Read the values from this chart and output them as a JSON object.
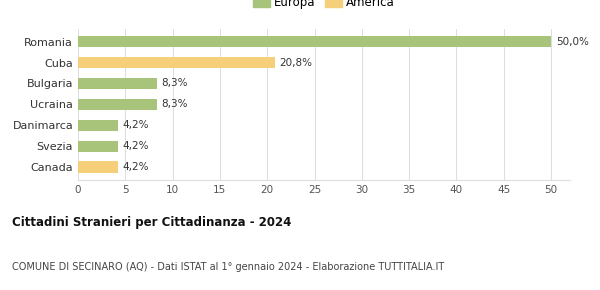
{
  "categories": [
    "Canada",
    "Svezia",
    "Danimarca",
    "Ucraina",
    "Bulgaria",
    "Cuba",
    "Romania"
  ],
  "values": [
    4.2,
    4.2,
    4.2,
    8.3,
    8.3,
    20.8,
    50.0
  ],
  "labels": [
    "4,2%",
    "4,2%",
    "4,2%",
    "8,3%",
    "8,3%",
    "20,8%",
    "50,0%"
  ],
  "colors": [
    "#f5cf7a",
    "#a8c47a",
    "#a8c47a",
    "#a8c47a",
    "#a8c47a",
    "#f5cf7a",
    "#a8c47a"
  ],
  "legend_europa_color": "#a8c47a",
  "legend_america_color": "#f5cf7a",
  "title": "Cittadini Stranieri per Cittadinanza - 2024",
  "subtitle": "COMUNE DI SECINARO (AQ) - Dati ISTAT al 1° gennaio 2024 - Elaborazione TUTTITALIA.IT",
  "xlim": [
    0,
    52
  ],
  "xticks": [
    0,
    5,
    10,
    15,
    20,
    25,
    30,
    35,
    40,
    45,
    50
  ],
  "background_color": "#ffffff",
  "grid_color": "#dddddd",
  "bar_height": 0.55
}
